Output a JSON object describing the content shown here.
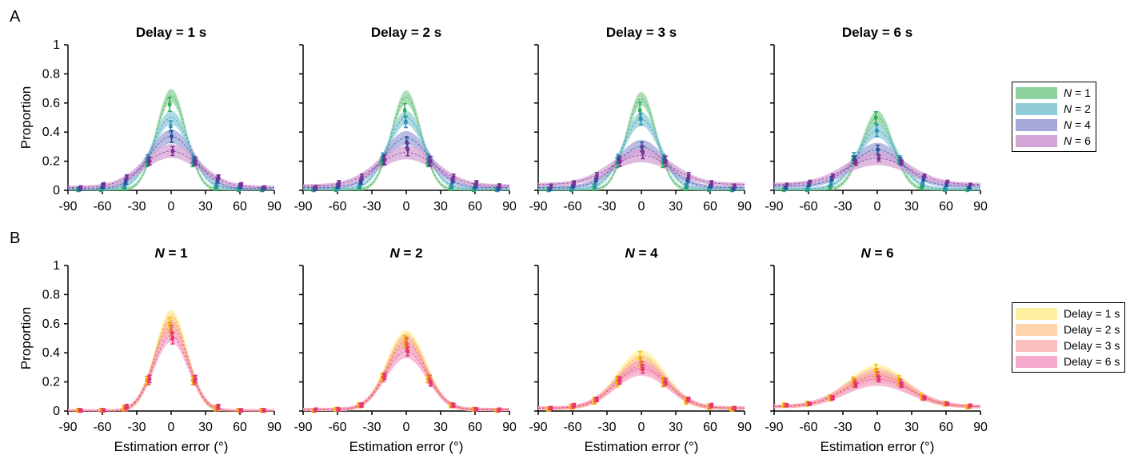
{
  "panel_letters": [
    "A",
    "B"
  ],
  "legends": [
    {
      "entries": [
        {
          "var": "N",
          "label": " = 1",
          "color": "#8fd19e"
        },
        {
          "var": "N",
          "label": " = 2",
          "color": "#91cdd8"
        },
        {
          "var": "N",
          "label": " = 4",
          "color": "#a3a7d9"
        },
        {
          "var": "N",
          "label": " = 6",
          "color": "#d5a4d6"
        }
      ]
    },
    {
      "entries": [
        {
          "var": "",
          "label": "Delay = 1 s",
          "color": "#fff0a0"
        },
        {
          "var": "",
          "label": "Delay = 2 s",
          "color": "#fdd4ac"
        },
        {
          "var": "",
          "label": "Delay = 3 s",
          "color": "#f9bfc0"
        },
        {
          "var": "",
          "label": "Delay = 6 s",
          "color": "#f6aacb"
        }
      ]
    }
  ],
  "chart_data": [
    {
      "type": "line",
      "row": "A",
      "title": "Delay = 1 s",
      "title_var": "",
      "ylabel": "Proportion",
      "xlabel": "",
      "xlim": [
        -90,
        90
      ],
      "ylim": [
        0,
        1
      ],
      "xticks": [
        -90,
        -60,
        -30,
        0,
        30,
        60,
        90
      ],
      "yticks": [
        0,
        0.2,
        0.4,
        0.6,
        0.8,
        1
      ],
      "data_x": [
        -80,
        -60,
        -40,
        -20,
        0,
        20,
        40,
        60,
        80
      ],
      "series": [
        {
          "label": "N = 1",
          "peak": 0.65,
          "width": 13,
          "base": 0.0,
          "color": "#2eaf55",
          "band": "#8fd19e",
          "values": [
            0.0,
            0.0,
            0.01,
            0.19,
            0.59,
            0.19,
            0.01,
            0.0,
            0.0
          ],
          "err": 0.05
        },
        {
          "label": "N = 2",
          "peak": 0.5,
          "width": 16,
          "base": 0.01,
          "color": "#2a8fb2",
          "band": "#91cdd8",
          "values": [
            0.0,
            0.01,
            0.03,
            0.22,
            0.44,
            0.21,
            0.03,
            0.01,
            0.0
          ],
          "err": 0.04
        },
        {
          "label": "N = 4",
          "peak": 0.37,
          "width": 20,
          "base": 0.01,
          "color": "#2a4b9a",
          "band": "#a3a7d9",
          "values": [
            0.01,
            0.03,
            0.06,
            0.2,
            0.37,
            0.2,
            0.07,
            0.03,
            0.01
          ],
          "err": 0.04
        },
        {
          "label": "N = 6",
          "peak": 0.27,
          "width": 24,
          "base": 0.02,
          "color": "#7b3296",
          "band": "#d5a4d6",
          "values": [
            0.02,
            0.04,
            0.09,
            0.2,
            0.27,
            0.2,
            0.09,
            0.04,
            0.02
          ],
          "err": 0.03
        }
      ]
    },
    {
      "type": "line",
      "row": "A",
      "title": "Delay = 2 s",
      "title_var": "",
      "ylabel": "",
      "xlabel": "",
      "xlim": [
        -90,
        90
      ],
      "ylim": [
        0,
        1
      ],
      "xticks": [
        -90,
        -60,
        -30,
        0,
        30,
        60,
        90
      ],
      "yticks": [
        0,
        0.2,
        0.4,
        0.6,
        0.8,
        1
      ],
      "data_x": [
        -80,
        -60,
        -40,
        -20,
        0,
        20,
        40,
        60,
        80
      ],
      "series": [
        {
          "label": "N = 1",
          "peak": 0.64,
          "width": 13,
          "base": 0.0,
          "color": "#2eaf55",
          "band": "#8fd19e",
          "values": [
            0.0,
            0.0,
            0.01,
            0.2,
            0.55,
            0.19,
            0.01,
            0.0,
            0.0
          ],
          "err": 0.05
        },
        {
          "label": "N = 2",
          "peak": 0.5,
          "width": 16,
          "base": 0.01,
          "color": "#2a8fb2",
          "band": "#91cdd8",
          "values": [
            0.0,
            0.01,
            0.03,
            0.23,
            0.47,
            0.22,
            0.03,
            0.01,
            0.0
          ],
          "err": 0.04
        },
        {
          "label": "N = 4",
          "peak": 0.36,
          "width": 20,
          "base": 0.02,
          "color": "#2a4b9a",
          "band": "#a3a7d9",
          "values": [
            0.01,
            0.03,
            0.06,
            0.21,
            0.33,
            0.2,
            0.07,
            0.03,
            0.01
          ],
          "err": 0.04
        },
        {
          "label": "N = 6",
          "peak": 0.26,
          "width": 25,
          "base": 0.03,
          "color": "#7b3296",
          "band": "#d5a4d6",
          "values": [
            0.02,
            0.05,
            0.09,
            0.21,
            0.28,
            0.2,
            0.09,
            0.05,
            0.03
          ],
          "err": 0.04
        }
      ]
    },
    {
      "type": "line",
      "row": "A",
      "title": "Delay = 3 s",
      "title_var": "",
      "ylabel": "",
      "xlabel": "",
      "xlim": [
        -90,
        90
      ],
      "ylim": [
        0,
        1
      ],
      "xticks": [
        -90,
        -60,
        -30,
        0,
        30,
        60,
        90
      ],
      "yticks": [
        0,
        0.2,
        0.4,
        0.6,
        0.8,
        1
      ],
      "data_x": [
        -80,
        -60,
        -40,
        -20,
        0,
        20,
        40,
        60,
        80
      ],
      "series": [
        {
          "label": "N = 1",
          "peak": 0.63,
          "width": 13,
          "base": 0.0,
          "color": "#2eaf55",
          "band": "#8fd19e",
          "values": [
            0.0,
            0.0,
            0.02,
            0.19,
            0.55,
            0.19,
            0.02,
            0.0,
            0.0
          ],
          "err": 0.06
        },
        {
          "label": "N = 2",
          "peak": 0.49,
          "width": 16,
          "base": 0.01,
          "color": "#2a8fb2",
          "band": "#91cdd8",
          "values": [
            0.0,
            0.01,
            0.03,
            0.22,
            0.49,
            0.22,
            0.03,
            0.01,
            0.0
          ],
          "err": 0.04
        },
        {
          "label": "N = 4",
          "peak": 0.3,
          "width": 21,
          "base": 0.02,
          "color": "#2a4b9a",
          "band": "#a3a7d9",
          "values": [
            0.01,
            0.03,
            0.07,
            0.21,
            0.3,
            0.21,
            0.07,
            0.03,
            0.01
          ],
          "err": 0.03
        },
        {
          "label": "N = 6",
          "peak": 0.24,
          "width": 26,
          "base": 0.04,
          "color": "#7b3296",
          "band": "#d5a4d6",
          "values": [
            0.03,
            0.05,
            0.1,
            0.2,
            0.26,
            0.2,
            0.1,
            0.05,
            0.03
          ],
          "err": 0.04
        }
      ]
    },
    {
      "type": "line",
      "row": "A",
      "title": "Delay = 6 s",
      "title_var": "",
      "ylabel": "",
      "xlabel": "",
      "xlim": [
        -90,
        90
      ],
      "ylim": [
        0,
        1
      ],
      "xticks": [
        -90,
        -60,
        -30,
        0,
        30,
        60,
        90
      ],
      "yticks": [
        0,
        0.2,
        0.4,
        0.6,
        0.8,
        1
      ],
      "data_x": [
        -80,
        -60,
        -40,
        -20,
        0,
        20,
        40,
        60,
        80
      ],
      "series": [
        {
          "label": "N = 1",
          "peak": 0.5,
          "width": 14,
          "base": 0.0,
          "color": "#2eaf55",
          "band": "#8fd19e",
          "values": [
            0.0,
            0.0,
            0.02,
            0.21,
            0.5,
            0.21,
            0.02,
            0.0,
            0.0
          ],
          "err": 0.04
        },
        {
          "label": "N = 2",
          "peak": 0.41,
          "width": 17,
          "base": 0.01,
          "color": "#2a8fb2",
          "band": "#91cdd8",
          "values": [
            0.01,
            0.01,
            0.04,
            0.23,
            0.41,
            0.21,
            0.04,
            0.01,
            0.01
          ],
          "err": 0.04
        },
        {
          "label": "N = 4",
          "peak": 0.28,
          "width": 22,
          "base": 0.03,
          "color": "#2a4b9a",
          "band": "#a3a7d9",
          "values": [
            0.02,
            0.04,
            0.08,
            0.21,
            0.28,
            0.2,
            0.08,
            0.04,
            0.02
          ],
          "err": 0.03
        },
        {
          "label": "N = 6",
          "peak": 0.22,
          "width": 27,
          "base": 0.04,
          "color": "#7b3296",
          "band": "#d5a4d6",
          "values": [
            0.04,
            0.06,
            0.1,
            0.19,
            0.22,
            0.19,
            0.1,
            0.06,
            0.04
          ],
          "err": 0.02
        }
      ]
    },
    {
      "type": "line",
      "row": "B",
      "title": " = 1",
      "title_var": "N",
      "ylabel": "Proportion",
      "xlabel": "Estimation error (°)",
      "xlim": [
        -90,
        90
      ],
      "ylim": [
        0,
        1
      ],
      "xticks": [
        -90,
        -60,
        -30,
        0,
        30,
        60,
        90
      ],
      "yticks": [
        0,
        0.2,
        0.4,
        0.6,
        0.8,
        1
      ],
      "data_x": [
        -80,
        -60,
        -40,
        -20,
        0,
        20,
        40,
        60,
        80
      ],
      "series": [
        {
          "label": "Delay = 1 s",
          "peak": 0.65,
          "width": 14,
          "base": 0.0,
          "color": "#f5c400",
          "band": "#fff0a0",
          "values": [
            0.0,
            0.0,
            0.02,
            0.21,
            0.59,
            0.21,
            0.02,
            0.0,
            0.0
          ],
          "err": 0.05
        },
        {
          "label": "Delay = 2 s",
          "peak": 0.62,
          "width": 14,
          "base": 0.0,
          "color": "#f39a2a",
          "band": "#fdd4ac",
          "values": [
            0.0,
            0.0,
            0.02,
            0.21,
            0.56,
            0.21,
            0.02,
            0.0,
            0.0
          ],
          "err": 0.05
        },
        {
          "label": "Delay = 3 s",
          "peak": 0.58,
          "width": 15,
          "base": 0.0,
          "color": "#ee5a4f",
          "band": "#f9bfc0",
          "values": [
            0.0,
            0.0,
            0.02,
            0.21,
            0.54,
            0.21,
            0.02,
            0.0,
            0.0
          ],
          "err": 0.05
        },
        {
          "label": "Delay = 6 s",
          "peak": 0.52,
          "width": 15,
          "base": 0.0,
          "color": "#e6337a",
          "band": "#f6aacb",
          "values": [
            0.0,
            0.0,
            0.03,
            0.22,
            0.5,
            0.22,
            0.03,
            0.0,
            0.0
          ],
          "err": 0.04
        }
      ]
    },
    {
      "type": "line",
      "row": "B",
      "title": " = 2",
      "title_var": "N",
      "ylabel": "",
      "xlabel": "Estimation error (°)",
      "xlim": [
        -90,
        90
      ],
      "ylim": [
        0,
        1
      ],
      "xticks": [
        -90,
        -60,
        -30,
        0,
        30,
        60,
        90
      ],
      "yticks": [
        0,
        0.2,
        0.4,
        0.6,
        0.8,
        1
      ],
      "data_x": [
        -80,
        -60,
        -40,
        -20,
        0,
        20,
        40,
        60,
        80
      ],
      "series": [
        {
          "label": "Delay = 1 s",
          "peak": 0.51,
          "width": 17,
          "base": 0.01,
          "color": "#f5c400",
          "band": "#fff0a0",
          "values": [
            0.0,
            0.01,
            0.04,
            0.23,
            0.48,
            0.22,
            0.04,
            0.01,
            0.0
          ],
          "err": 0.04
        },
        {
          "label": "Delay = 2 s",
          "peak": 0.49,
          "width": 17,
          "base": 0.01,
          "color": "#f39a2a",
          "band": "#fdd4ac",
          "values": [
            0.0,
            0.01,
            0.04,
            0.23,
            0.47,
            0.22,
            0.04,
            0.01,
            0.0
          ],
          "err": 0.04
        },
        {
          "label": "Delay = 3 s",
          "peak": 0.47,
          "width": 17,
          "base": 0.01,
          "color": "#ee5a4f",
          "band": "#f9bfc0",
          "values": [
            0.0,
            0.01,
            0.04,
            0.23,
            0.46,
            0.22,
            0.04,
            0.01,
            0.0
          ],
          "err": 0.04
        },
        {
          "label": "Delay = 6 s",
          "peak": 0.41,
          "width": 18,
          "base": 0.01,
          "color": "#e6337a",
          "band": "#f6aacb",
          "values": [
            0.01,
            0.01,
            0.04,
            0.24,
            0.41,
            0.19,
            0.04,
            0.01,
            0.01
          ],
          "err": 0.03
        }
      ]
    },
    {
      "type": "line",
      "row": "B",
      "title": " = 4",
      "title_var": "N",
      "ylabel": "",
      "xlabel": "Estimation error (°)",
      "xlim": [
        -90,
        90
      ],
      "ylim": [
        0,
        1
      ],
      "xticks": [
        -90,
        -60,
        -30,
        0,
        30,
        60,
        90
      ],
      "yticks": [
        0,
        0.2,
        0.4,
        0.6,
        0.8,
        1
      ],
      "data_x": [
        -80,
        -60,
        -40,
        -20,
        0,
        20,
        40,
        60,
        80
      ],
      "series": [
        {
          "label": "Delay = 1 s",
          "peak": 0.37,
          "width": 21,
          "base": 0.02,
          "color": "#f5c400",
          "band": "#fff0a0",
          "values": [
            0.01,
            0.03,
            0.07,
            0.2,
            0.36,
            0.2,
            0.07,
            0.03,
            0.01
          ],
          "err": 0.05
        },
        {
          "label": "Delay = 2 s",
          "peak": 0.34,
          "width": 21,
          "base": 0.02,
          "color": "#f39a2a",
          "band": "#fdd4ac",
          "values": [
            0.01,
            0.03,
            0.07,
            0.21,
            0.33,
            0.2,
            0.07,
            0.03,
            0.01
          ],
          "err": 0.04
        },
        {
          "label": "Delay = 3 s",
          "peak": 0.31,
          "width": 22,
          "base": 0.02,
          "color": "#ee5a4f",
          "band": "#f9bfc0",
          "values": [
            0.02,
            0.03,
            0.08,
            0.21,
            0.31,
            0.2,
            0.08,
            0.03,
            0.02
          ],
          "err": 0.03
        },
        {
          "label": "Delay = 6 s",
          "peak": 0.29,
          "width": 23,
          "base": 0.02,
          "color": "#e6337a",
          "band": "#f6aacb",
          "values": [
            0.02,
            0.04,
            0.08,
            0.21,
            0.29,
            0.2,
            0.08,
            0.04,
            0.02
          ],
          "err": 0.03
        }
      ]
    },
    {
      "type": "line",
      "row": "B",
      "title": " = 6",
      "title_var": "N",
      "ylabel": "",
      "xlabel": "Estimation error (°)",
      "xlim": [
        -90,
        90
      ],
      "ylim": [
        0,
        1
      ],
      "xticks": [
        -90,
        -60,
        -30,
        0,
        30,
        60,
        90
      ],
      "yticks": [
        0,
        0.2,
        0.4,
        0.6,
        0.8,
        1
      ],
      "data_x": [
        -80,
        -60,
        -40,
        -20,
        0,
        20,
        40,
        60,
        80
      ],
      "series": [
        {
          "label": "Delay = 1 s",
          "peak": 0.27,
          "width": 26,
          "base": 0.03,
          "color": "#f5c400",
          "band": "#fff0a0",
          "values": [
            0.04,
            0.05,
            0.09,
            0.2,
            0.28,
            0.21,
            0.1,
            0.05,
            0.03
          ],
          "err": 0.04
        },
        {
          "label": "Delay = 2 s",
          "peak": 0.25,
          "width": 26,
          "base": 0.03,
          "color": "#f39a2a",
          "band": "#fdd4ac",
          "values": [
            0.04,
            0.05,
            0.09,
            0.2,
            0.26,
            0.2,
            0.09,
            0.05,
            0.03
          ],
          "err": 0.03
        },
        {
          "label": "Delay = 3 s",
          "peak": 0.24,
          "width": 27,
          "base": 0.03,
          "color": "#ee5a4f",
          "band": "#f9bfc0",
          "values": [
            0.04,
            0.05,
            0.09,
            0.19,
            0.24,
            0.19,
            0.09,
            0.05,
            0.03
          ],
          "err": 0.03
        },
        {
          "label": "Delay = 6 s",
          "peak": 0.22,
          "width": 28,
          "base": 0.03,
          "color": "#e6337a",
          "band": "#f6aacb",
          "values": [
            0.04,
            0.05,
            0.09,
            0.18,
            0.22,
            0.18,
            0.09,
            0.05,
            0.04
          ],
          "err": 0.02
        }
      ]
    }
  ]
}
